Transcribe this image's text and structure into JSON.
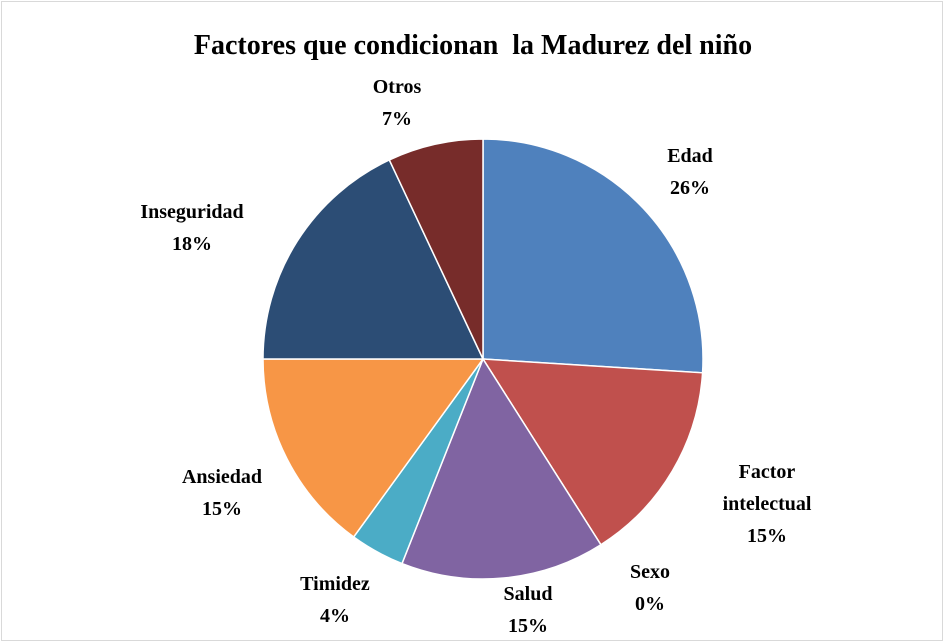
{
  "chart_data": {
    "type": "pie",
    "title": "Factores que condicionan  la Madurez del niño",
    "categories": [
      "Edad",
      "Factor intelectual",
      "Sexo",
      "Salud",
      "Timidez",
      "Ansiedad",
      "Inseguridad",
      "Otros"
    ],
    "values": [
      26,
      15,
      0,
      15,
      4,
      15,
      18,
      7
    ],
    "value_labels": [
      "26%",
      "15%",
      "0%",
      "15%",
      "4%",
      "15%",
      "18%",
      "7%"
    ],
    "colors": [
      "#4f81bd",
      "#c0504d",
      "#9bbb59",
      "#8064a2",
      "#4bacc6",
      "#f79646",
      "#2c4d75",
      "#772c2a"
    ]
  }
}
